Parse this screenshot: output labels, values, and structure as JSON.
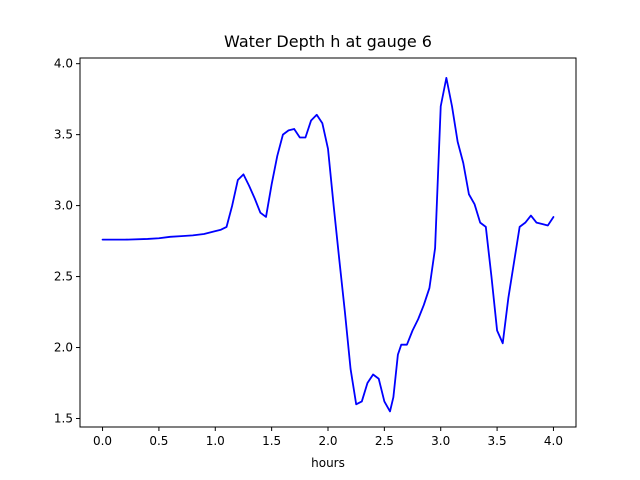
{
  "chart_data": {
    "type": "line",
    "title": "Water Depth h at gauge 6",
    "xlabel": "hours",
    "ylabel": "",
    "xlim": [
      -0.2,
      4.2
    ],
    "ylim": [
      1.44,
      4.04
    ],
    "x_ticks": [
      0.0,
      0.5,
      1.0,
      1.5,
      2.0,
      2.5,
      3.0,
      3.5,
      4.0
    ],
    "x_tick_labels": [
      "0.0",
      "0.5",
      "1.0",
      "1.5",
      "2.0",
      "2.5",
      "3.0",
      "3.5",
      "4.0"
    ],
    "y_ticks": [
      1.5,
      2.0,
      2.5,
      3.0,
      3.5,
      4.0
    ],
    "y_tick_labels": [
      "1.5",
      "2.0",
      "2.5",
      "3.0",
      "3.5",
      "4.0"
    ],
    "grid": false,
    "legend": "none",
    "series": [
      {
        "color": "#0000ff",
        "x": [
          0.0,
          0.2,
          0.4,
          0.5,
          0.6,
          0.7,
          0.8,
          0.9,
          1.0,
          1.05,
          1.1,
          1.15,
          1.2,
          1.25,
          1.3,
          1.35,
          1.4,
          1.45,
          1.5,
          1.55,
          1.6,
          1.65,
          1.7,
          1.75,
          1.8,
          1.85,
          1.9,
          1.95,
          2.0,
          2.05,
          2.1,
          2.15,
          2.2,
          2.25,
          2.3,
          2.35,
          2.4,
          2.45,
          2.5,
          2.55,
          2.58,
          2.62,
          2.65,
          2.7,
          2.75,
          2.8,
          2.85,
          2.9,
          2.95,
          3.0,
          3.05,
          3.1,
          3.15,
          3.2,
          3.25,
          3.3,
          3.35,
          3.4,
          3.45,
          3.5,
          3.55,
          3.6,
          3.65,
          3.7,
          3.75,
          3.8,
          3.85,
          3.9,
          3.95,
          4.0
        ],
        "y": [
          2.76,
          2.76,
          2.765,
          2.77,
          2.78,
          2.785,
          2.79,
          2.8,
          2.82,
          2.83,
          2.85,
          3.0,
          3.18,
          3.22,
          3.14,
          3.05,
          2.95,
          2.92,
          3.15,
          3.35,
          3.5,
          3.53,
          3.54,
          3.48,
          3.48,
          3.6,
          3.64,
          3.58,
          3.4,
          3.0,
          2.62,
          2.25,
          1.85,
          1.6,
          1.62,
          1.75,
          1.81,
          1.78,
          1.62,
          1.55,
          1.65,
          1.95,
          2.02,
          2.02,
          2.12,
          2.2,
          2.3,
          2.42,
          2.7,
          3.7,
          3.9,
          3.7,
          3.45,
          3.3,
          3.08,
          3.01,
          2.88,
          2.85,
          2.5,
          2.12,
          2.03,
          2.35,
          2.6,
          2.85,
          2.88,
          2.93,
          2.88,
          2.87,
          2.86,
          2.92
        ]
      }
    ]
  }
}
